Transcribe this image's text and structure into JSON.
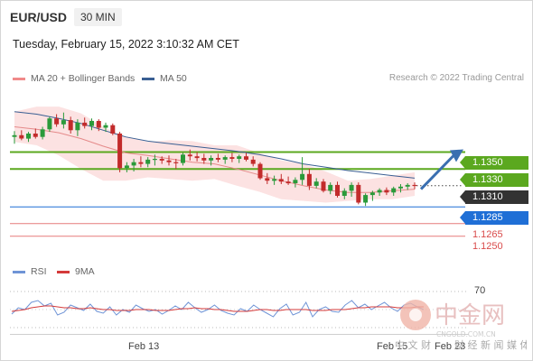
{
  "header": {
    "pair": "EUR/USD",
    "timeframe": "30 MIN",
    "datetime": "Tuesday, February 15, 2022 3:10:32 AM CET"
  },
  "legend": {
    "ma20": "MA 20 + Bollinger Bands",
    "ma50": "MA 50",
    "credit": "Research © 2022 Trading Central",
    "rsi": "RSI",
    "ma9": "9MA"
  },
  "colors": {
    "green": "#5ba81f",
    "blue": "#1f6fd6",
    "red": "#e05a5a",
    "dark": "#333333",
    "band": "#fbd8d8",
    "ma20": "#e58a8a",
    "ma50": "#3a5f93"
  },
  "watermark": {
    "cn": "中金网",
    "url": "CNGOLD.COM.CN",
    "sub": "财 经 新 闻 媒 体",
    "ciwen": "中 文 财"
  },
  "chart_data": {
    "type": "line",
    "price_range": [
      1.1238,
      1.1417
    ],
    "levels": [
      {
        "label": "1.1350",
        "value": 1.135,
        "style": "green-tag"
      },
      {
        "label": "1.1330",
        "value": 1.133,
        "style": "green-tag"
      },
      {
        "label": "1.1310",
        "value": 1.131,
        "style": "dark-tag"
      },
      {
        "label": "1.1285",
        "value": 1.1285,
        "style": "blue-tag"
      },
      {
        "label": "1.1265",
        "value": 1.1265,
        "style": "red-text"
      },
      {
        "label": "1.1250",
        "value": 1.125,
        "style": "red-text"
      }
    ],
    "candles": [
      [
        1.1368,
        1.1375,
        1.136,
        1.137
      ],
      [
        1.137,
        1.1376,
        1.1364,
        1.1366
      ],
      [
        1.1366,
        1.1374,
        1.1362,
        1.1372
      ],
      [
        1.1372,
        1.1378,
        1.1366,
        1.1368
      ],
      [
        1.1368,
        1.138,
        1.1365,
        1.1377
      ],
      [
        1.1377,
        1.1392,
        1.1374,
        1.139
      ],
      [
        1.139,
        1.1395,
        1.138,
        1.1383
      ],
      [
        1.1383,
        1.1397,
        1.1378,
        1.1388
      ],
      [
        1.1388,
        1.1392,
        1.1372,
        1.1376
      ],
      [
        1.1376,
        1.1389,
        1.1369,
        1.1385
      ],
      [
        1.1385,
        1.1391,
        1.1378,
        1.1381
      ],
      [
        1.1381,
        1.139,
        1.1376,
        1.1387
      ],
      [
        1.1387,
        1.1389,
        1.1375,
        1.1379
      ],
      [
        1.1379,
        1.1385,
        1.1374,
        1.1382
      ],
      [
        1.1382,
        1.1384,
        1.137,
        1.1372
      ],
      [
        1.1372,
        1.1374,
        1.1326,
        1.1331
      ],
      [
        1.1331,
        1.1338,
        1.1326,
        1.1334
      ],
      [
        1.1334,
        1.1342,
        1.1327,
        1.1338
      ],
      [
        1.1338,
        1.1345,
        1.1332,
        1.1336
      ],
      [
        1.1336,
        1.1344,
        1.1332,
        1.1341
      ],
      [
        1.1341,
        1.1347,
        1.1334,
        1.1342
      ],
      [
        1.1342,
        1.1345,
        1.1336,
        1.134
      ],
      [
        1.134,
        1.1346,
        1.1334,
        1.1338
      ],
      [
        1.1338,
        1.1342,
        1.133,
        1.1337
      ],
      [
        1.1337,
        1.1349,
        1.1334,
        1.1347
      ],
      [
        1.1347,
        1.1353,
        1.134,
        1.1345
      ],
      [
        1.1345,
        1.135,
        1.1339,
        1.1343
      ],
      [
        1.1343,
        1.1348,
        1.1336,
        1.134
      ],
      [
        1.134,
        1.1346,
        1.1334,
        1.1343
      ],
      [
        1.1343,
        1.1348,
        1.1338,
        1.1341
      ],
      [
        1.1341,
        1.1346,
        1.1336,
        1.1344
      ],
      [
        1.1344,
        1.1349,
        1.1338,
        1.1342
      ],
      [
        1.1342,
        1.1347,
        1.1337,
        1.1345
      ],
      [
        1.1345,
        1.1349,
        1.1339,
        1.1341
      ],
      [
        1.1341,
        1.1345,
        1.1333,
        1.1336
      ],
      [
        1.1336,
        1.1338,
        1.1317,
        1.1319
      ],
      [
        1.1319,
        1.1325,
        1.1312,
        1.1316
      ],
      [
        1.1316,
        1.1322,
        1.1311,
        1.1318
      ],
      [
        1.1318,
        1.1324,
        1.1312,
        1.1315
      ],
      [
        1.1315,
        1.1321,
        1.1311,
        1.1313
      ],
      [
        1.1313,
        1.132,
        1.1308,
        1.1317
      ],
      [
        1.1317,
        1.1344,
        1.1311,
        1.1324
      ],
      [
        1.1324,
        1.133,
        1.1305,
        1.131
      ],
      [
        1.131,
        1.1319,
        1.1307,
        1.1315
      ],
      [
        1.1315,
        1.1318,
        1.1302,
        1.1304
      ],
      [
        1.1304,
        1.1314,
        1.13,
        1.1311
      ],
      [
        1.1311,
        1.1315,
        1.1296,
        1.1298
      ],
      [
        1.1298,
        1.1307,
        1.1294,
        1.1304
      ],
      [
        1.1304,
        1.1314,
        1.1297,
        1.1311
      ],
      [
        1.1311,
        1.1314,
        1.1288,
        1.129
      ],
      [
        1.129,
        1.1301,
        1.1286,
        1.1299
      ],
      [
        1.1299,
        1.1304,
        1.1292,
        1.1302
      ],
      [
        1.1302,
        1.1307,
        1.1298,
        1.1305
      ],
      [
        1.1305,
        1.1308,
        1.1299,
        1.1302
      ],
      [
        1.1302,
        1.1309,
        1.1298,
        1.1307
      ],
      [
        1.1307,
        1.1312,
        1.1302,
        1.1309
      ],
      [
        1.1309,
        1.1313,
        1.1305,
        1.1311
      ],
      [
        1.1311,
        1.1314,
        1.1306,
        1.131
      ]
    ],
    "ma20": [
      1.138,
      1.1377,
      1.1373,
      1.1366,
      1.1357,
      1.1349,
      1.1346,
      1.1342,
      1.1338,
      1.1336,
      1.133,
      1.1323,
      1.1316,
      1.131,
      1.1305,
      1.1302,
      1.1302,
      1.1304,
      1.1306
    ],
    "ma50": [
      1.1398,
      1.1395,
      1.139,
      1.1384,
      1.1376,
      1.1368,
      1.1363,
      1.136,
      1.1357,
      1.1354,
      1.1351,
      1.1347,
      1.1342,
      1.1336,
      1.1332,
      1.1328,
      1.1325,
      1.1322,
      1.1319
    ],
    "band_upper": [
      1.1398,
      1.1404,
      1.1404,
      1.1396,
      1.138,
      1.1368,
      1.1362,
      1.1364,
      1.1363,
      1.1358,
      1.1358,
      1.1349,
      1.134,
      1.1336,
      1.1327,
      1.1316,
      1.1318,
      1.1322,
      1.1326
    ],
    "band_lower": [
      1.1362,
      1.1358,
      1.1346,
      1.133,
      1.1316,
      1.1316,
      1.132,
      1.1318,
      1.1316,
      1.1318,
      1.131,
      1.1303,
      1.1294,
      1.1292,
      1.129,
      1.1292,
      1.1294,
      1.1294,
      1.1298
    ],
    "projection": {
      "from": 1.1306,
      "to": 1.135
    },
    "rsi": [
      45,
      52,
      50,
      58,
      60,
      54,
      57,
      44,
      47,
      55,
      52,
      49,
      56,
      48,
      46,
      53,
      44,
      50,
      47,
      55,
      51,
      48,
      50,
      45,
      49,
      54,
      50,
      58,
      52,
      47,
      50,
      55,
      49,
      46,
      44,
      51,
      48,
      55,
      50,
      46,
      42,
      51,
      56,
      44,
      47,
      58,
      42,
      50,
      53,
      48,
      47,
      55,
      60,
      52,
      56,
      50,
      54,
      58,
      52,
      48,
      55,
      57,
      53,
      50
    ],
    "rsi9": [
      48,
      49,
      50,
      52,
      53,
      54,
      54,
      53,
      52,
      52,
      51,
      51,
      52,
      51,
      50,
      50,
      49,
      49,
      49,
      50,
      50,
      50,
      49,
      49,
      49,
      50,
      51,
      51,
      52,
      51,
      51,
      50,
      50,
      49,
      48,
      48,
      48,
      49,
      50,
      50,
      49,
      49,
      50,
      50,
      50,
      50,
      49,
      49,
      49,
      50,
      50,
      50,
      51,
      52,
      52,
      53,
      53,
      53,
      53,
      52,
      52,
      52,
      53,
      53
    ],
    "rsi_ticks": [
      "70"
    ],
    "x_ticks": [
      {
        "label": "Feb 13"
      },
      {
        "label": "Feb 15"
      },
      {
        "label": "Feb 23"
      }
    ]
  }
}
